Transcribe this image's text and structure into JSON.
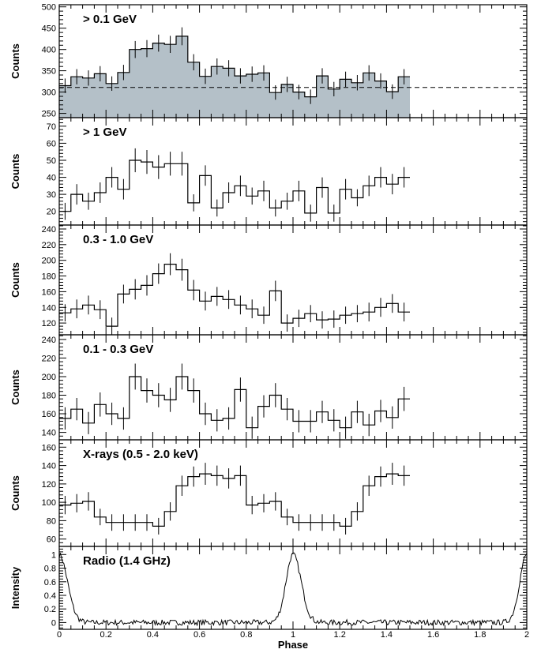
{
  "chart_data": {
    "type": "line",
    "xlabel": "Phase",
    "xlim": [
      0,
      2
    ],
    "x_ticks": [
      0,
      0.2,
      0.4,
      0.6,
      0.8,
      1,
      1.2,
      1.4,
      1.6,
      1.8,
      2
    ],
    "x_tick_labels": [
      "0",
      "0.2",
      "0.4",
      "0.6",
      "0.8",
      "1",
      "1.2",
      "1.4",
      "1.6",
      "1.8",
      "2"
    ],
    "bin_width": 0.05,
    "panels": [
      {
        "id": "gt01",
        "title": "> 0.1 GeV",
        "ylabel": "Counts",
        "ylim": [
          240,
          505
        ],
        "y_ticks": [
          250,
          300,
          350,
          400,
          450,
          500
        ],
        "y_tick_labels": [
          "250",
          "300",
          "350",
          "400",
          "450",
          "500"
        ],
        "style": "filled",
        "fill_color": "#b4c0c8",
        "baseline": 311,
        "values": [
          315,
          336,
          333,
          343,
          320,
          346,
          400,
          402,
          415,
          412,
          431,
          370,
          337,
          360,
          356,
          338,
          342,
          345,
          299,
          318,
          300,
          289,
          338,
          307,
          330,
          322,
          345,
          326,
          301,
          336
        ],
        "errors": [
          17,
          18,
          18,
          18,
          17,
          18,
          20,
          20,
          20,
          20,
          21,
          19,
          18,
          19,
          19,
          18,
          18,
          18,
          17,
          18,
          17,
          17,
          18,
          17,
          18,
          18,
          18,
          18,
          17,
          18
        ]
      },
      {
        "id": "gt1",
        "title": "> 1 GeV",
        "ylabel": "Counts",
        "ylim": [
          12,
          75
        ],
        "y_ticks": [
          20,
          30,
          40,
          50,
          60,
          70
        ],
        "y_tick_labels": [
          "20",
          "30",
          "40",
          "50",
          "60",
          "70"
        ],
        "style": "step",
        "values": [
          20,
          30,
          26,
          31,
          40,
          33,
          50,
          49,
          46,
          48,
          48,
          25,
          41,
          22,
          31,
          35,
          29,
          32,
          22,
          26,
          32,
          19,
          34,
          19,
          33,
          28,
          35,
          40,
          36,
          40
        ],
        "errors": [
          5,
          6,
          5,
          6,
          6,
          6,
          7,
          7,
          7,
          7,
          7,
          5,
          6,
          5,
          6,
          6,
          5,
          6,
          5,
          5,
          6,
          5,
          6,
          5,
          6,
          5,
          6,
          6,
          6,
          6
        ]
      },
      {
        "id": "b0310",
        "title": "0.3 - 1.0 GeV",
        "ylabel": "Counts",
        "ylim": [
          105,
          245
        ],
        "y_ticks": [
          120,
          140,
          160,
          180,
          200,
          220,
          240
        ],
        "y_tick_labels": [
          "120",
          "140",
          "160",
          "180",
          "200",
          "220",
          "240"
        ],
        "style": "step",
        "values": [
          133,
          138,
          143,
          137,
          116,
          157,
          163,
          168,
          183,
          195,
          188,
          162,
          148,
          154,
          150,
          143,
          138,
          130,
          161,
          120,
          126,
          132,
          124,
          125,
          130,
          132,
          134,
          140,
          145,
          134
        ],
        "errors": [
          11,
          12,
          12,
          12,
          11,
          12,
          13,
          13,
          13,
          14,
          14,
          13,
          12,
          12,
          12,
          12,
          12,
          11,
          13,
          11,
          11,
          11,
          11,
          11,
          11,
          11,
          12,
          12,
          12,
          12
        ]
      },
      {
        "id": "b0103",
        "title": "0.1 - 0.3 GeV",
        "ylabel": "Counts",
        "ylim": [
          132,
          245
        ],
        "y_ticks": [
          140,
          160,
          180,
          200,
          220,
          240
        ],
        "y_tick_labels": [
          "140",
          "160",
          "180",
          "200",
          "220",
          "240"
        ],
        "style": "step",
        "values": [
          155,
          165,
          150,
          170,
          160,
          155,
          200,
          185,
          180,
          175,
          200,
          185,
          160,
          153,
          155,
          186,
          145,
          168,
          180,
          165,
          152,
          152,
          162,
          153,
          145,
          162,
          148,
          163,
          156,
          176
        ],
        "errors": [
          12,
          12,
          12,
          13,
          12,
          12,
          14,
          13,
          13,
          13,
          14,
          13,
          12,
          12,
          12,
          13,
          12,
          12,
          13,
          12,
          12,
          12,
          12,
          12,
          12,
          12,
          12,
          12,
          12,
          13
        ]
      },
      {
        "id": "xray",
        "title": "X-rays (0.5 - 2.0 keV)",
        "ylabel": "Counts",
        "ylim": [
          52,
          168
        ],
        "y_ticks": [
          60,
          80,
          100,
          120,
          140,
          160
        ],
        "y_tick_labels": [
          "60",
          "80",
          "100",
          "120",
          "140",
          "160"
        ],
        "style": "step",
        "values": [
          97,
          99,
          101,
          84,
          78,
          78,
          78,
          78,
          74,
          90,
          118,
          128,
          131,
          129,
          126,
          129,
          97,
          99,
          101,
          84,
          78,
          78,
          78,
          78,
          74,
          90,
          118,
          128,
          131,
          129
        ],
        "errors": [
          10,
          10,
          10,
          9,
          9,
          9,
          9,
          9,
          9,
          10,
          11,
          11,
          12,
          11,
          11,
          11,
          10,
          10,
          10,
          9,
          9,
          9,
          9,
          9,
          9,
          10,
          11,
          11,
          12,
          11
        ]
      },
      {
        "id": "radio",
        "title": "Radio (1.4 GHz)",
        "ylabel": "Intensity",
        "ylim": [
          -0.1,
          1.12
        ],
        "y_ticks": [
          0,
          0.2,
          0.4,
          0.6,
          0.8,
          1
        ],
        "y_tick_labels": [
          "0",
          "0.2",
          "0.4",
          "0.6",
          "0.8",
          "1"
        ],
        "style": "profile",
        "peaks_at": [
          0,
          1,
          2
        ],
        "peak_value": 1.0
      }
    ]
  }
}
